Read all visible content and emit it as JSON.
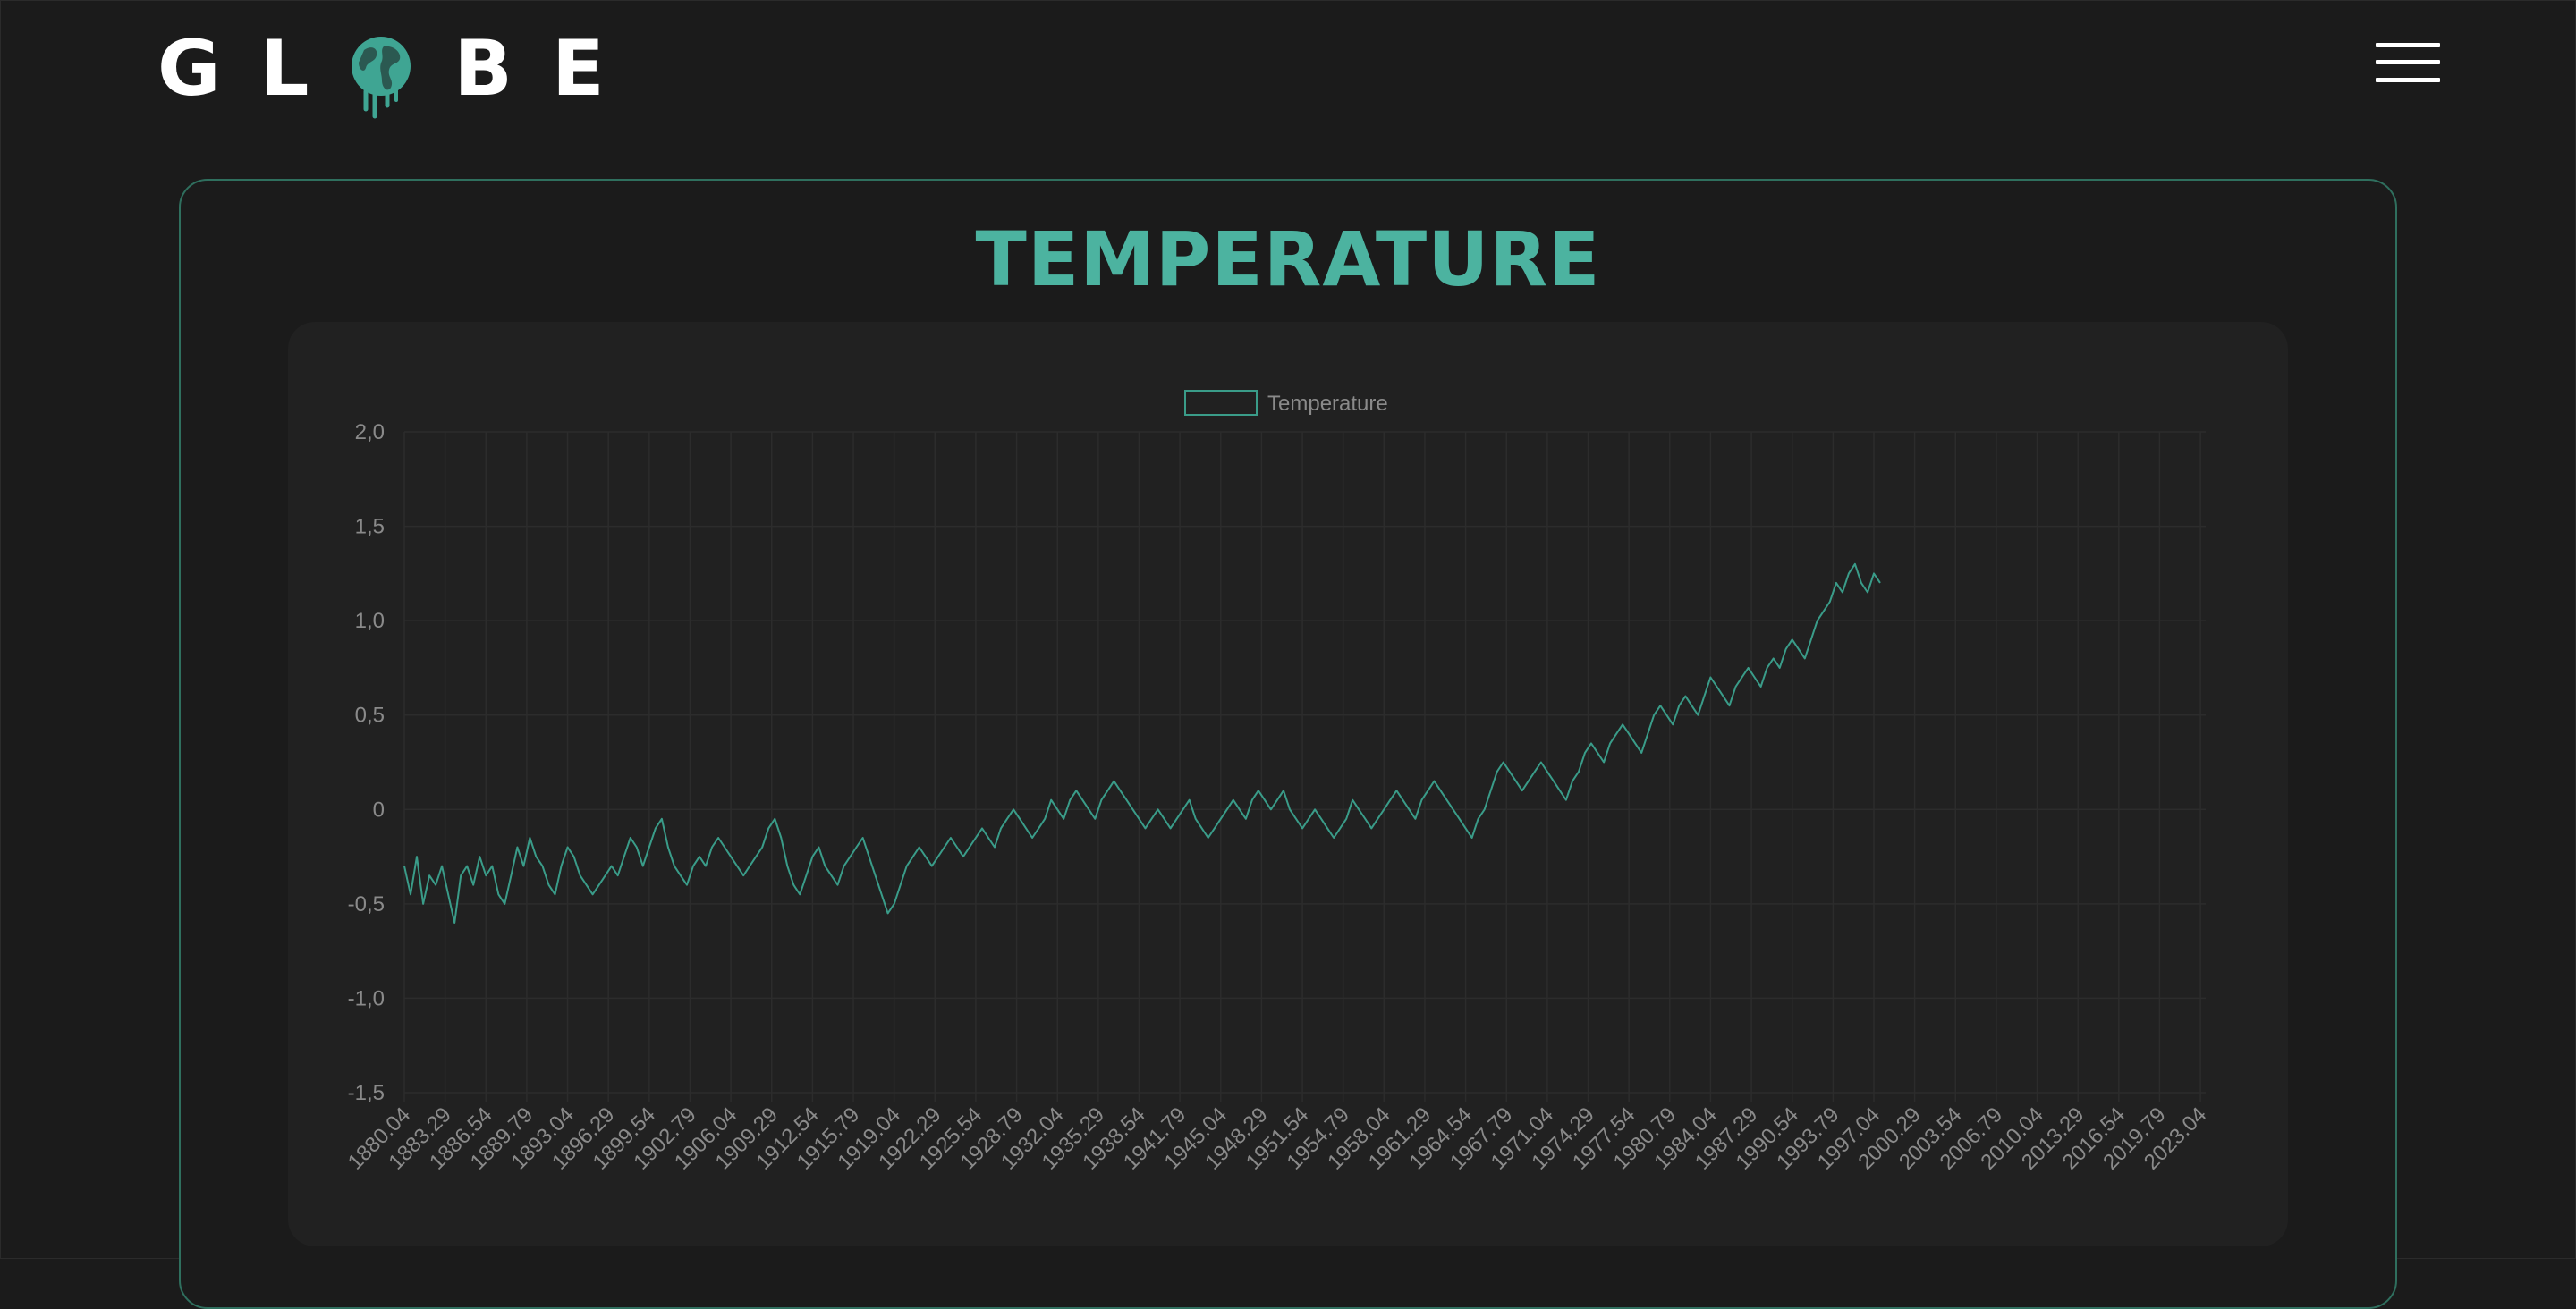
{
  "brand": {
    "letters_before": [
      "G",
      "L"
    ],
    "letters_after": [
      "B",
      "E"
    ]
  },
  "header": {
    "menu_icon": "hamburger-menu-icon"
  },
  "colors": {
    "background": "#1b1b1b",
    "panel": "#212121",
    "accent": "#4cb3a0",
    "series_line": "#3a9c89",
    "card_border": "#2f6f5e",
    "grid": "#2c2c2c",
    "tick_text": "#8a8a8a"
  },
  "page_title": "TEMPERATURE",
  "chart_data": {
    "type": "line",
    "legend": {
      "label": "Temperature",
      "position": "top"
    },
    "ylim": [
      -1.5,
      2.0
    ],
    "y_ticks": [
      "2,0",
      "1,5",
      "1,0",
      "0,5",
      "0",
      "-0,5",
      "-1,0",
      "-1,5"
    ],
    "y_tick_values": [
      2.0,
      1.5,
      1.0,
      0.5,
      0,
      -0.5,
      -1.0,
      -1.5
    ],
    "x_ticks": [
      "1880.04",
      "1883.29",
      "1886.54",
      "1889.79",
      "1893.04",
      "1896.29",
      "1899.54",
      "1902.79",
      "1906.04",
      "1909.29",
      "1912.54",
      "1915.79",
      "1919.04",
      "1922.29",
      "1925.54",
      "1928.79",
      "1932.04",
      "1935.29",
      "1938.54",
      "1941.79",
      "1945.04",
      "1948.29",
      "1951.54",
      "1954.79",
      "1958.04",
      "1961.29",
      "1964.54",
      "1967.79",
      "1971.04",
      "1974.29",
      "1977.54",
      "1980.79",
      "1984.04",
      "1987.29",
      "1990.54",
      "1993.79",
      "1997.04",
      "2000.29",
      "2003.54",
      "2006.79",
      "2010.04",
      "2013.29",
      "2016.54",
      "2019.79",
      "2023.04"
    ],
    "x_range": [
      1880.04,
      2023.46
    ],
    "grid": true,
    "series": [
      {
        "name": "Temperature",
        "x_start": 1880.04,
        "x_step": 0.5,
        "values": [
          -0.3,
          -0.45,
          -0.25,
          -0.5,
          -0.35,
          -0.4,
          -0.3,
          -0.45,
          -0.6,
          -0.35,
          -0.3,
          -0.4,
          -0.25,
          -0.35,
          -0.3,
          -0.45,
          -0.5,
          -0.35,
          -0.2,
          -0.3,
          -0.15,
          -0.25,
          -0.3,
          -0.4,
          -0.45,
          -0.3,
          -0.2,
          -0.25,
          -0.35,
          -0.4,
          -0.45,
          -0.4,
          -0.35,
          -0.3,
          -0.35,
          -0.25,
          -0.15,
          -0.2,
          -0.3,
          -0.2,
          -0.1,
          -0.05,
          -0.2,
          -0.3,
          -0.35,
          -0.4,
          -0.3,
          -0.25,
          -0.3,
          -0.2,
          -0.15,
          -0.2,
          -0.25,
          -0.3,
          -0.35,
          -0.3,
          -0.25,
          -0.2,
          -0.1,
          -0.05,
          -0.15,
          -0.3,
          -0.4,
          -0.45,
          -0.35,
          -0.25,
          -0.2,
          -0.3,
          -0.35,
          -0.4,
          -0.3,
          -0.25,
          -0.2,
          -0.15,
          -0.25,
          -0.35,
          -0.45,
          -0.55,
          -0.5,
          -0.4,
          -0.3,
          -0.25,
          -0.2,
          -0.25,
          -0.3,
          -0.25,
          -0.2,
          -0.15,
          -0.2,
          -0.25,
          -0.2,
          -0.15,
          -0.1,
          -0.15,
          -0.2,
          -0.1,
          -0.05,
          0,
          -0.05,
          -0.1,
          -0.15,
          -0.1,
          -0.05,
          0.05,
          0,
          -0.05,
          0.05,
          0.1,
          0.05,
          0.0,
          -0.05,
          0.05,
          0.1,
          0.15,
          0.1,
          0.05,
          0.0,
          -0.05,
          -0.1,
          -0.05,
          0.0,
          -0.05,
          -0.1,
          -0.05,
          0.0,
          0.05,
          -0.05,
          -0.1,
          -0.15,
          -0.1,
          -0.05,
          0.0,
          0.05,
          0.0,
          -0.05,
          0.05,
          0.1,
          0.05,
          0.0,
          0.05,
          0.1,
          0.0,
          -0.05,
          -0.1,
          -0.05,
          0.0,
          -0.05,
          -0.1,
          -0.15,
          -0.1,
          -0.05,
          0.05,
          0.0,
          -0.05,
          -0.1,
          -0.05,
          0.0,
          0.05,
          0.1,
          0.05,
          0.0,
          -0.05,
          0.05,
          0.1,
          0.15,
          0.1,
          0.05,
          0.0,
          -0.05,
          -0.1,
          -0.15,
          -0.05,
          0.0,
          0.1,
          0.2,
          0.25,
          0.2,
          0.15,
          0.1,
          0.15,
          0.2,
          0.25,
          0.2,
          0.15,
          0.1,
          0.05,
          0.15,
          0.2,
          0.3,
          0.35,
          0.3,
          0.25,
          0.35,
          0.4,
          0.45,
          0.4,
          0.35,
          0.3,
          0.4,
          0.5,
          0.55,
          0.5,
          0.45,
          0.55,
          0.6,
          0.55,
          0.5,
          0.6,
          0.7,
          0.65,
          0.6,
          0.55,
          0.65,
          0.7,
          0.75,
          0.7,
          0.65,
          0.75,
          0.8,
          0.75,
          0.85,
          0.9,
          0.85,
          0.8,
          0.9,
          1.0,
          1.05,
          1.1,
          1.2,
          1.15,
          1.25,
          1.3,
          1.2,
          1.15,
          1.25,
          1.2
        ]
      }
    ]
  }
}
